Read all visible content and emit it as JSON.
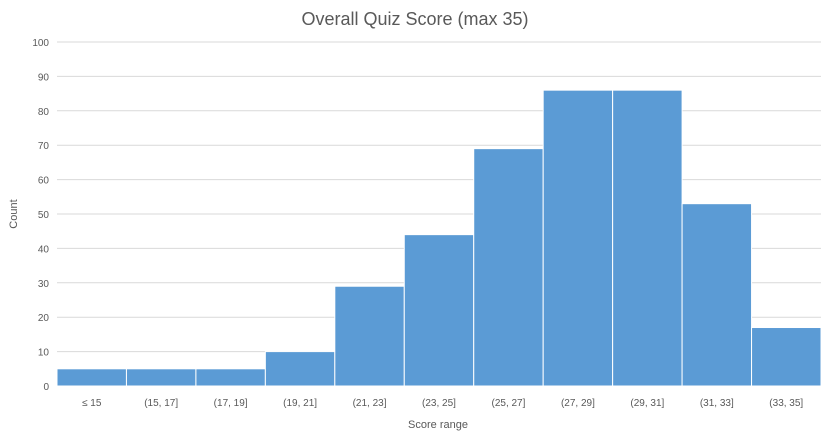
{
  "chart_data": {
    "type": "bar",
    "title": "Overall Quiz Score (max 35)",
    "xlabel": "Score range",
    "ylabel": "Count",
    "categories": [
      "≤ 15",
      "(15, 17]",
      "(17, 19]",
      "(19, 21]",
      "(21, 23]",
      "(23, 25]",
      "(25, 27]",
      "(27, 29]",
      "(29, 31]",
      "(31, 33]",
      "(33, 35]"
    ],
    "values": [
      5,
      5,
      5,
      10,
      29,
      44,
      69,
      86,
      86,
      53,
      17
    ],
    "ylim": [
      0,
      100
    ],
    "yticks": [
      0,
      10,
      20,
      30,
      40,
      50,
      60,
      70,
      80,
      90,
      100
    ],
    "grid": true,
    "legend": "none",
    "colors": {
      "bar": "#5b9bd5",
      "bar_border": "#ffffff",
      "grid": "#d9d9d9",
      "axis": "#bfbfbf",
      "text": "#595959"
    }
  }
}
